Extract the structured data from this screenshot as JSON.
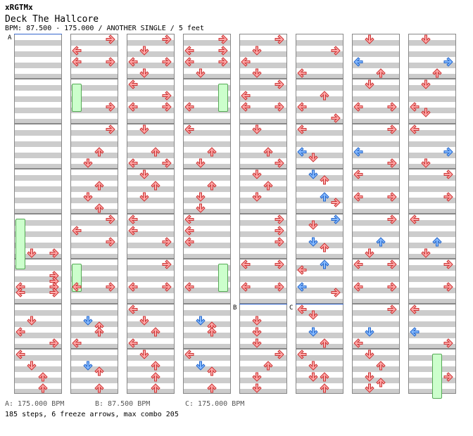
{
  "header": {
    "site": "xRGTMx",
    "song_title": "Deck The Hallcore",
    "meta": "BPM: 87.500 - 175.000 / ANOTHER SINGLE / 5 feet"
  },
  "colors": {
    "red_fill": "#ffaaaa",
    "red_stroke": "#cc3333",
    "blue_fill": "#88bbff",
    "blue_stroke": "#2266cc",
    "freeze_fill": "#ccffcc"
  },
  "chart": {
    "columns": 8,
    "measures_per_column": 8,
    "bpm_changes": [
      {
        "label": "A",
        "column": 0,
        "beat": 0
      },
      {
        "label": "B",
        "column": 4,
        "beat": 24
      },
      {
        "label": "C",
        "column": 5,
        "beat": 24
      }
    ],
    "freezes": [
      {
        "column": 1,
        "lane": "left",
        "start": 4,
        "end": 6.5
      },
      {
        "column": 3,
        "lane": "right",
        "start": 4,
        "end": 6.5
      },
      {
        "column": 0,
        "lane": "left",
        "start": 16,
        "end": 20.5
      },
      {
        "column": 1,
        "lane": "left",
        "start": 20,
        "end": 22.5
      },
      {
        "column": 3,
        "lane": "right",
        "start": 20,
        "end": 22.5
      },
      {
        "column": 7,
        "lane": "up",
        "start": 28,
        "end": 32
      }
    ],
    "notes": [
      [
        [
          "right",
          19
        ],
        [
          "down",
          19
        ],
        [
          "right",
          21
        ],
        [
          "right",
          21.5
        ],
        [
          "left",
          22
        ],
        [
          "right",
          22
        ],
        [
          "left",
          22.5
        ],
        [
          "right",
          22.5
        ],
        [
          "down",
          25
        ],
        [
          "left",
          26
        ],
        [
          "right",
          27
        ],
        [
          "left",
          28
        ],
        [
          "down",
          29
        ],
        [
          "up",
          30
        ],
        [
          "up",
          31
        ]
      ],
      [
        [
          "right",
          0
        ],
        [
          "left",
          1
        ],
        [
          "left",
          2
        ],
        [
          "right",
          2
        ],
        [
          "right",
          6
        ],
        [
          "right",
          8
        ],
        [
          "up",
          10
        ],
        [
          "down",
          11
        ],
        [
          "up",
          13
        ],
        [
          "down",
          14
        ],
        [
          "up",
          15
        ],
        [
          "right",
          16
        ],
        [
          "left",
          17
        ],
        [
          "right",
          18
        ],
        [
          "left",
          22
        ],
        [
          "right",
          22
        ],
        [
          "blue-down",
          25
        ],
        [
          "up",
          25.5
        ],
        [
          "up",
          26
        ],
        [
          "left",
          27
        ],
        [
          "blue-down",
          29
        ],
        [
          "up",
          29.5
        ],
        [
          "up",
          31
        ]
      ],
      [
        [
          "right",
          0
        ],
        [
          "down",
          1
        ],
        [
          "left",
          2
        ],
        [
          "right",
          2
        ],
        [
          "down",
          3
        ],
        [
          "left",
          4
        ],
        [
          "right",
          5
        ],
        [
          "left",
          6
        ],
        [
          "right",
          6
        ],
        [
          "down",
          8
        ],
        [
          "up",
          10
        ],
        [
          "left",
          11
        ],
        [
          "right",
          11
        ],
        [
          "down",
          12
        ],
        [
          "up",
          13
        ],
        [
          "down",
          14
        ],
        [
          "left",
          16
        ],
        [
          "left",
          17
        ],
        [
          "right",
          18
        ],
        [
          "right",
          20
        ],
        [
          "left",
          22
        ],
        [
          "right",
          22
        ],
        [
          "left",
          24
        ],
        [
          "down",
          25
        ],
        [
          "up",
          26
        ],
        [
          "left",
          27
        ],
        [
          "down",
          28
        ],
        [
          "up",
          29
        ],
        [
          "up",
          30
        ],
        [
          "up",
          31
        ]
      ],
      [
        [
          "right",
          0
        ],
        [
          "left",
          1
        ],
        [
          "right",
          1
        ],
        [
          "left",
          2
        ],
        [
          "right",
          2
        ],
        [
          "down",
          3
        ],
        [
          "left",
          6
        ],
        [
          "left",
          8
        ],
        [
          "up",
          10
        ],
        [
          "down",
          11
        ],
        [
          "up",
          13
        ],
        [
          "down",
          14
        ],
        [
          "down",
          15
        ],
        [
          "left",
          16
        ],
        [
          "left",
          17
        ],
        [
          "left",
          18
        ],
        [
          "left",
          22
        ],
        [
          "blue-down",
          25
        ],
        [
          "up",
          25.5
        ],
        [
          "up",
          26
        ],
        [
          "left",
          28
        ],
        [
          "blue-down",
          29
        ],
        [
          "up",
          29.5
        ],
        [
          "up",
          31
        ]
      ],
      [
        [
          "right",
          0
        ],
        [
          "down",
          1
        ],
        [
          "left",
          2
        ],
        [
          "down",
          3
        ],
        [
          "right",
          4
        ],
        [
          "left",
          5
        ],
        [
          "left",
          6
        ],
        [
          "right",
          6
        ],
        [
          "down",
          8
        ],
        [
          "up",
          10
        ],
        [
          "right",
          11
        ],
        [
          "down",
          12
        ],
        [
          "up",
          13
        ],
        [
          "down",
          14
        ],
        [
          "right",
          16
        ],
        [
          "right",
          17
        ],
        [
          "right",
          18
        ],
        [
          "left",
          20
        ],
        [
          "right",
          20
        ],
        [
          "left",
          22
        ],
        [
          "right",
          22
        ],
        [
          "down",
          25
        ],
        [
          "down",
          26
        ],
        [
          "down",
          27
        ],
        [
          "right",
          28
        ],
        [
          "up",
          29
        ],
        [
          "down",
          30
        ],
        [
          "down",
          31
        ]
      ],
      [
        [
          "right",
          1
        ],
        [
          "left",
          3
        ],
        [
          "up",
          5
        ],
        [
          "left",
          6
        ],
        [
          "right",
          7
        ],
        [
          "left",
          8
        ],
        [
          "blue-left",
          10
        ],
        [
          "down",
          10.5
        ],
        [
          "blue-down",
          12
        ],
        [
          "up",
          12.5
        ],
        [
          "blue-up",
          14
        ],
        [
          "right",
          14.5
        ],
        [
          "blue-right",
          16
        ],
        [
          "down",
          16.5
        ],
        [
          "blue-down",
          18
        ],
        [
          "up",
          18.5
        ],
        [
          "blue-up",
          20
        ],
        [
          "left",
          20.5
        ],
        [
          "blue-left",
          22
        ],
        [
          "right",
          22.5
        ],
        [
          "left",
          24
        ],
        [
          "down",
          24.5
        ],
        [
          "blue-down",
          26
        ],
        [
          "up",
          27
        ],
        [
          "left",
          28
        ],
        [
          "down",
          29
        ],
        [
          "up",
          30
        ],
        [
          "down",
          30
        ],
        [
          "up",
          31
        ]
      ],
      [
        [
          "down",
          0
        ],
        [
          "blue-left",
          2
        ],
        [
          "up",
          3
        ],
        [
          "down",
          4
        ],
        [
          "left",
          6
        ],
        [
          "right",
          6
        ],
        [
          "right",
          8
        ],
        [
          "blue-left",
          10
        ],
        [
          "right",
          11
        ],
        [
          "left",
          12
        ],
        [
          "left",
          14
        ],
        [
          "right",
          14
        ],
        [
          "right",
          16
        ],
        [
          "blue-up",
          18
        ],
        [
          "down",
          19
        ],
        [
          "left",
          20
        ],
        [
          "right",
          20
        ],
        [
          "left",
          22
        ],
        [
          "right",
          22
        ],
        [
          "right",
          24
        ],
        [
          "blue-down",
          26
        ],
        [
          "left",
          27
        ],
        [
          "down",
          28
        ],
        [
          "up",
          29
        ],
        [
          "down",
          30
        ],
        [
          "up",
          30.5
        ],
        [
          "down",
          31
        ]
      ],
      [
        [
          "down",
          0
        ],
        [
          "blue-right",
          2
        ],
        [
          "up",
          3
        ],
        [
          "down",
          4
        ],
        [
          "left",
          6
        ],
        [
          "down",
          6.5
        ],
        [
          "left",
          8
        ],
        [
          "blue-right",
          10
        ],
        [
          "down",
          11
        ],
        [
          "right",
          12
        ],
        [
          "right",
          14
        ],
        [
          "left",
          16
        ],
        [
          "blue-up",
          18
        ],
        [
          "down",
          19
        ],
        [
          "right",
          20
        ],
        [
          "right",
          22
        ],
        [
          "left",
          24
        ],
        [
          "blue-left",
          26
        ],
        [
          "right",
          27
        ],
        [
          "right",
          30
        ]
      ]
    ]
  },
  "legend": [
    "A: 175.000 BPM",
    "B: 87.500 BPM",
    "C: 175.000 BPM"
  ],
  "stats": "185 steps, 6 freeze arrows, max combo 205"
}
